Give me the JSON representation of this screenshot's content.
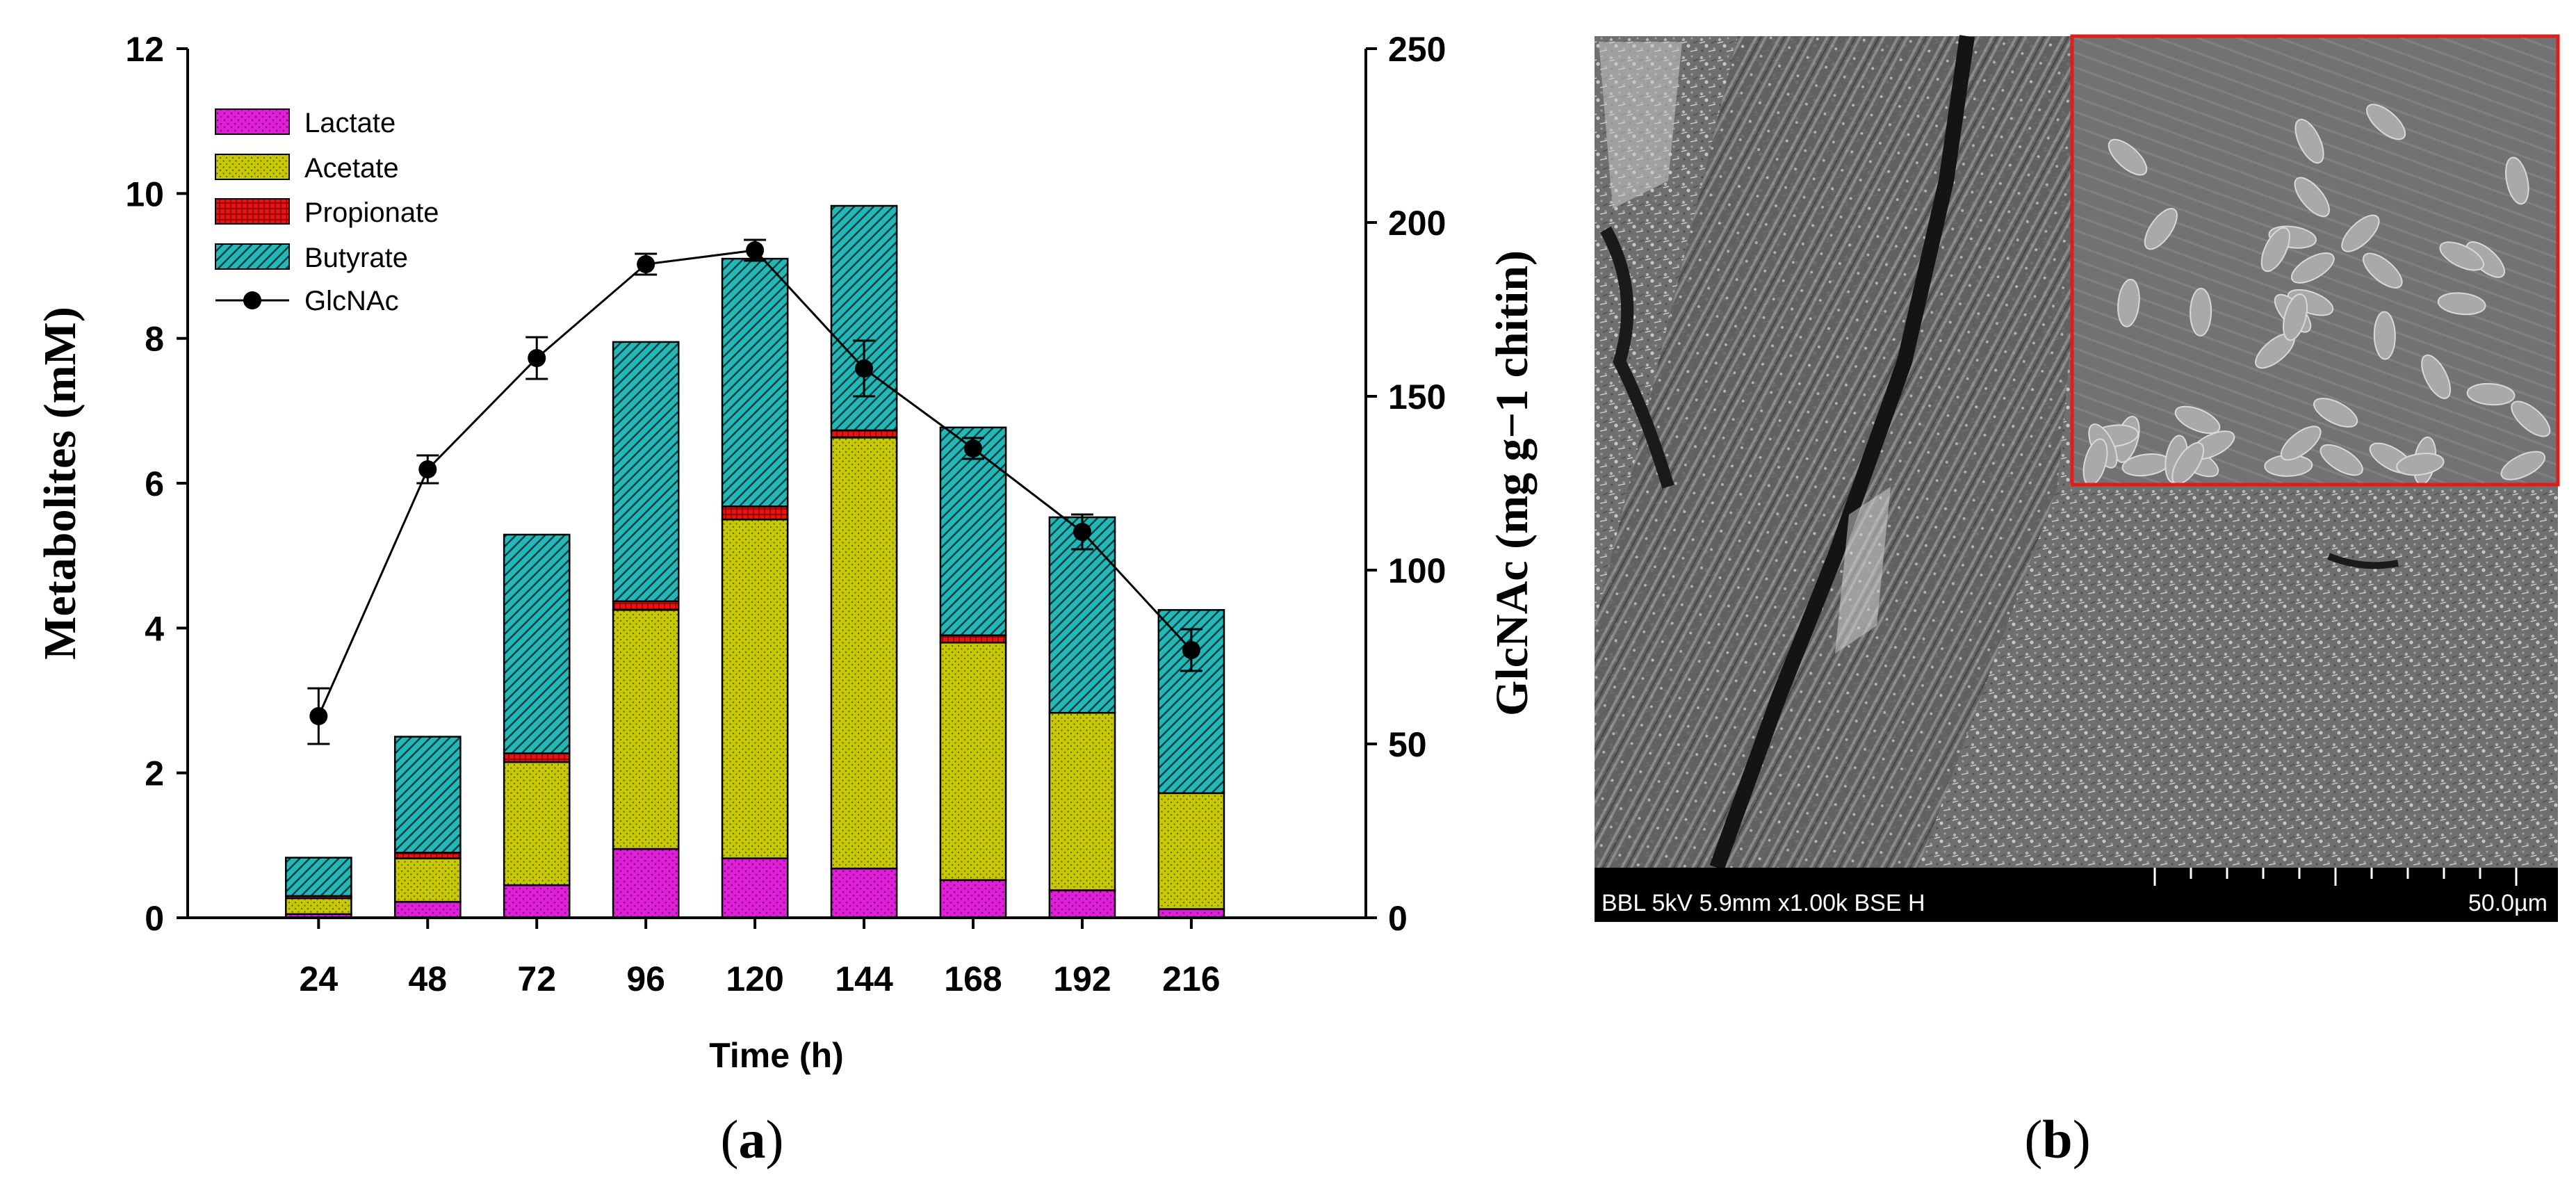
{
  "panels": {
    "a_label_open": "(",
    "a_label_letter": "a",
    "a_label_close": ")",
    "b_label_open": "(",
    "b_label_letter": "b",
    "b_label_close": ")"
  },
  "chart_data": {
    "type": "bar",
    "stacked": true,
    "categories": [
      "24",
      "48",
      "72",
      "96",
      "120",
      "144",
      "168",
      "192",
      "216"
    ],
    "xlabel": "Time (h)",
    "ylabel": "Metabolites (mM)",
    "y2label": "GlcNAc (mg g−1 chitin)",
    "ylim": [
      0,
      12
    ],
    "y2lim": [
      0,
      250
    ],
    "yticks": [
      "0",
      "2",
      "4",
      "6",
      "8",
      "10",
      "12"
    ],
    "y2ticks": [
      "0",
      "50",
      "100",
      "150",
      "200",
      "250"
    ],
    "legend_position": "top-left",
    "series": [
      {
        "name": "Lactate",
        "color": "#e020d8",
        "values": [
          0.05,
          0.22,
          0.45,
          0.95,
          0.82,
          0.68,
          0.52,
          0.38,
          0.12
        ]
      },
      {
        "name": "Acetate",
        "color": "#c8c800",
        "values": [
          0.22,
          0.6,
          1.7,
          3.3,
          4.68,
          5.95,
          3.28,
          2.45,
          1.6
        ]
      },
      {
        "name": "Propionate",
        "color": "#ee1111",
        "values": [
          0.03,
          0.08,
          0.12,
          0.12,
          0.18,
          0.1,
          0.1,
          0.0,
          0.0
        ]
      },
      {
        "name": "Butyrate",
        "color": "#22b8b8",
        "values": [
          0.53,
          1.6,
          3.02,
          3.58,
          3.42,
          3.1,
          2.87,
          2.7,
          2.53
        ]
      }
    ],
    "line_series": {
      "name": "GlcNAc",
      "axis": "right",
      "color": "#000000",
      "values": [
        58,
        129,
        161,
        188,
        192,
        158,
        135,
        111,
        77
      ],
      "errors": [
        8,
        4,
        6,
        3,
        3,
        8,
        3,
        5,
        6
      ]
    }
  },
  "micrograph": {
    "info_text": "BBL 5kV 5.9mm x1.00k BSE H",
    "scale_text": "50.0µm"
  }
}
